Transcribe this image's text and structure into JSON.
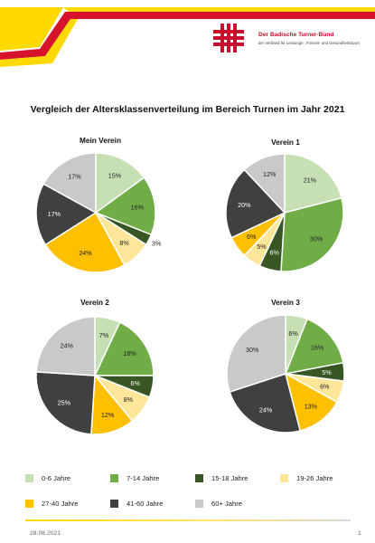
{
  "header": {
    "org_name": "Der Badische Turner-Bund",
    "org_tagline": "der Verband für Leistungs-, Freizeit- und Gesundheitssport",
    "logo_icon": "btb-logo-icon"
  },
  "colors": {
    "banner_yellow": "#ffd900",
    "banner_red": "#d7132b",
    "logo_red": "#c8102e"
  },
  "chart_data": [
    {
      "type": "pie",
      "title": "Vergleich der Altersklassenverteilung im Bereich Turnen im Jahr 2021",
      "subtitle": "Mein Verein",
      "categories": [
        "0-6 Jahre",
        "7-14 Jahre",
        "15-18 Jahre",
        "19-26 Jahre",
        "27-40 Jahre",
        "41-60 Jahre",
        "60+ Jahre"
      ],
      "values": [
        15,
        16,
        3,
        8,
        24,
        17,
        17
      ],
      "labels": [
        "15%",
        "16%",
        "3%",
        "8%",
        "24%",
        "17%",
        "17%"
      ],
      "colors": [
        "#c6e0b4",
        "#70ad47",
        "#375623",
        "#ffe699",
        "#ffc000",
        "#404040",
        "#c9c9c9"
      ],
      "legend": "bottom"
    },
    {
      "type": "pie",
      "subtitle": "Verein 1",
      "categories": [
        "0-6 Jahre",
        "7-14 Jahre",
        "15-18 Jahre",
        "19-26 Jahre",
        "27-40 Jahre",
        "41-60 Jahre",
        "60+ Jahre"
      ],
      "values": [
        21,
        30,
        6,
        5,
        6,
        20,
        12
      ],
      "labels": [
        "21%",
        "30%",
        "6%",
        "5%",
        "6%",
        "20%",
        "12%"
      ],
      "colors": [
        "#c6e0b4",
        "#70ad47",
        "#375623",
        "#ffe699",
        "#ffc000",
        "#404040",
        "#c9c9c9"
      ],
      "legend": "bottom"
    },
    {
      "type": "pie",
      "subtitle": "Verein 2",
      "categories": [
        "0-6 Jahre",
        "7-14 Jahre",
        "15-18 Jahre",
        "19-26 Jahre",
        "27-40 Jahre",
        "41-60 Jahre",
        "60+ Jahre"
      ],
      "values": [
        7,
        18,
        6,
        8,
        12,
        25,
        24
      ],
      "labels": [
        "7%",
        "18%",
        "6%",
        "8%",
        "12%",
        "25%",
        "24%"
      ],
      "colors": [
        "#c6e0b4",
        "#70ad47",
        "#375623",
        "#ffe699",
        "#ffc000",
        "#404040",
        "#c9c9c9"
      ],
      "legend": "bottom"
    },
    {
      "type": "pie",
      "subtitle": "Verein 3",
      "categories": [
        "0-6 Jahre",
        "7-14 Jahre",
        "15-18 Jahre",
        "19-26 Jahre",
        "27-40 Jahre",
        "41-60 Jahre",
        "60+ Jahre"
      ],
      "values": [
        6,
        16,
        5,
        6,
        13,
        24,
        30
      ],
      "labels": [
        "6%",
        "16%",
        "5%",
        "6%",
        "13%",
        "24%",
        "30%"
      ],
      "colors": [
        "#c6e0b4",
        "#70ad47",
        "#375623",
        "#ffe699",
        "#ffc000",
        "#404040",
        "#c9c9c9"
      ],
      "legend": "bottom"
    }
  ],
  "legend": {
    "items": [
      {
        "label": "0-6 Jahre",
        "color": "#c6e0b4"
      },
      {
        "label": "7-14 Jahre",
        "color": "#70ad47"
      },
      {
        "label": "15-18 Jahre",
        "color": "#375623"
      },
      {
        "label": "19-26 Jahre",
        "color": "#ffe699"
      },
      {
        "label": "27-40 Jahre",
        "color": "#ffc000"
      },
      {
        "label": "41-60 Jahre",
        "color": "#404040"
      },
      {
        "label": "60+ Jahre",
        "color": "#c9c9c9"
      }
    ]
  },
  "footer": {
    "date": "28.06.2021",
    "page": "1"
  }
}
